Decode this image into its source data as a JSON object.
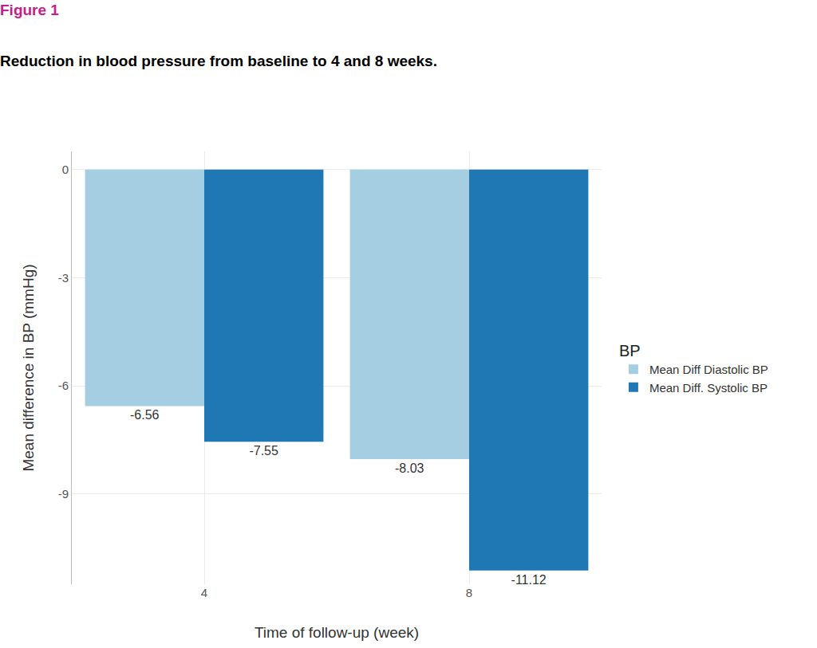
{
  "chart_data": {
    "type": "bar",
    "title": "Figure 1",
    "subtitle": "Reduction in blood pressure from baseline to 4 and 8 weeks.",
    "x_label": "Time of follow-up (week)",
    "y_label": "Mean difference in BP (mmHg)",
    "legend_title": "BP",
    "categories": [
      "4",
      "8"
    ],
    "series": [
      {
        "name": "Mean Diff Diastolic BP",
        "color": "#a6cee3",
        "values": [
          -6.56,
          -8.03
        ]
      },
      {
        "name": "Mean Diff. Systolic BP",
        "color": "#1f78b4",
        "values": [
          -7.55,
          -11.12
        ]
      }
    ],
    "ylim": [
      -11.5,
      0.5
    ],
    "yticks": [
      0,
      -3,
      -6,
      -9
    ],
    "grid": true,
    "legend": "right",
    "data_labels": true
  }
}
